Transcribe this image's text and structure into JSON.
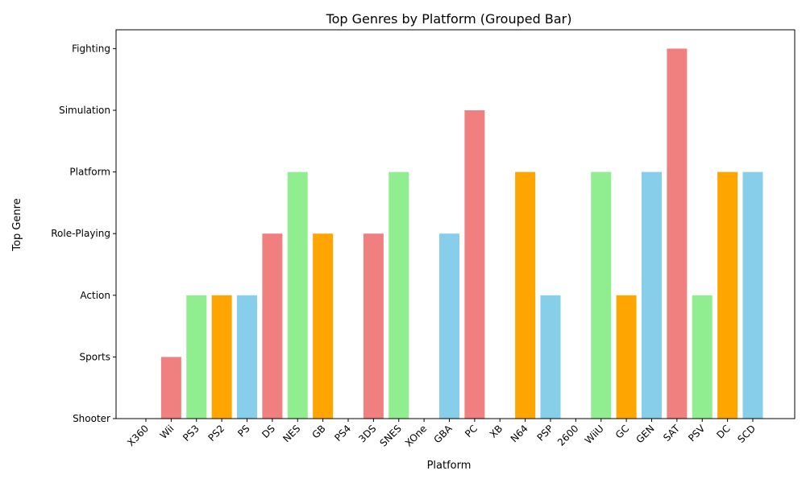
{
  "chart_data": {
    "type": "bar",
    "title": "Top Genres by Platform (Grouped Bar)",
    "xlabel": "Platform",
    "ylabel": "Top Genre",
    "categories": [
      "X360",
      "Wii",
      "PS3",
      "PS2",
      "PS",
      "DS",
      "NES",
      "GB",
      "PS4",
      "3DS",
      "SNES",
      "XOne",
      "GBA",
      "PC",
      "XB",
      "N64",
      "PSP",
      "2600",
      "WiiU",
      "GC",
      "GEN",
      "SAT",
      "PSV",
      "DC",
      "SCD"
    ],
    "y_categories": [
      "Shooter",
      "Sports",
      "Action",
      "Role-Playing",
      "Platform",
      "Simulation",
      "Fighting"
    ],
    "values": [
      "Shooter",
      "Sports",
      "Action",
      "Action",
      "Action",
      "Role-Playing",
      "Platform",
      "Role-Playing",
      "Shooter",
      "Role-Playing",
      "Platform",
      "Shooter",
      "Role-Playing",
      "Simulation",
      "Shooter",
      "Platform",
      "Action",
      "Shooter",
      "Platform",
      "Action",
      "Platform",
      "Fighting",
      "Action",
      "Platform",
      "Platform"
    ],
    "bar_colors": [
      "#87ceeb",
      "#f08080",
      "#90ee90",
      "#ffa500"
    ],
    "grid": false,
    "legend": false
  }
}
